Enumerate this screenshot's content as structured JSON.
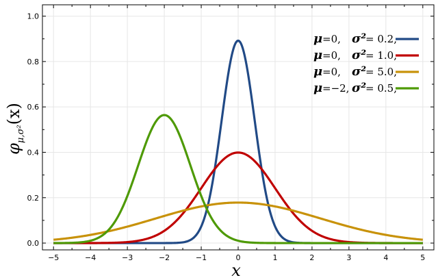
{
  "chart_data": {
    "type": "line",
    "xlabel": "x",
    "ylabel": {
      "symbol": "φ",
      "subscript": "μ,σ²",
      "argument": "(x)"
    },
    "xlim": [
      -5.3,
      5.3
    ],
    "ylim": [
      -0.03,
      1.05
    ],
    "x_ticks": [
      "−5",
      "−4",
      "−3",
      "−2",
      "−1",
      "0",
      "1",
      "2",
      "3",
      "4",
      "5"
    ],
    "x_tick_values": [
      -5,
      -4,
      -3,
      -2,
      -1,
      0,
      1,
      2,
      3,
      4,
      5
    ],
    "y_ticks": [
      "0.0",
      "0.2",
      "0.4",
      "0.6",
      "0.8",
      "1.0"
    ],
    "y_tick_values": [
      0,
      0.2,
      0.4,
      0.6,
      0.8,
      1.0
    ],
    "grid": true,
    "legend_position": "top-right",
    "series": [
      {
        "mu_text": "0,",
        "sigma2_text": "0.2,",
        "mu": 0,
        "sigma2": 0.2,
        "color": "#214a86"
      },
      {
        "mu_text": "0,",
        "sigma2_text": "1.0,",
        "mu": 0,
        "sigma2": 1.0,
        "color": "#c00000"
      },
      {
        "mu_text": "0,",
        "sigma2_text": "5.0,",
        "mu": 0,
        "sigma2": 5.0,
        "color": "#c8920a"
      },
      {
        "mu_text": "−2,",
        "sigma2_text": "0.5,",
        "mu": -2,
        "sigma2": 0.5,
        "color": "#4e9a06"
      }
    ],
    "legend_mu_symbol": "μ",
    "legend_sigma_symbol": "σ²",
    "legend_eq": "="
  }
}
